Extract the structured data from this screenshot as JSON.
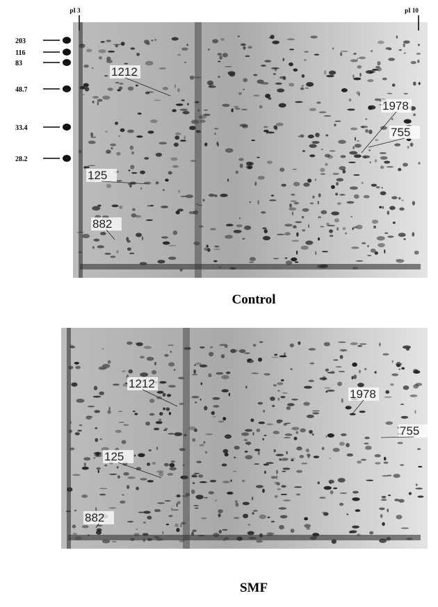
{
  "header": {
    "pi_low": "pI 3",
    "pi_high": "pI 10"
  },
  "mw_markers": [
    "203",
    "116",
    "83",
    "48.7",
    "33.4",
    "28.2"
  ],
  "panels": [
    {
      "caption": "Control",
      "spots": [
        "1212",
        "1978",
        "755",
        "125",
        "882"
      ]
    },
    {
      "caption": "SMF",
      "spots": [
        "1212",
        "1978",
        "755",
        "125",
        "882"
      ]
    }
  ]
}
